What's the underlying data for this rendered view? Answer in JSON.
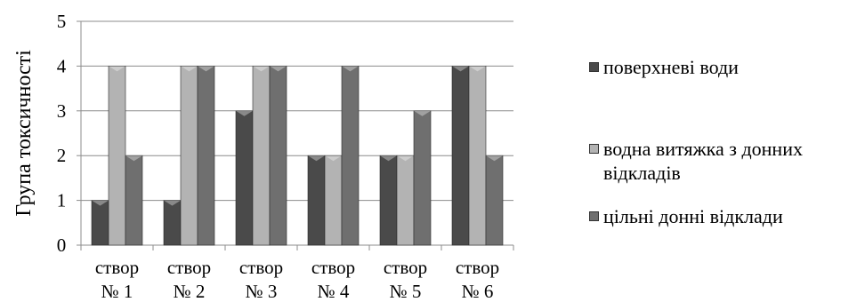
{
  "chart_data": {
    "type": "bar",
    "categories": [
      [
        "створ",
        "№ 1"
      ],
      [
        "створ",
        "№ 2"
      ],
      [
        "створ",
        "№ 3"
      ],
      [
        "створ",
        "№ 4"
      ],
      [
        "створ",
        "№ 5"
      ],
      [
        "створ",
        "№ 6"
      ]
    ],
    "series": [
      {
        "name": "поверхневі води",
        "values": [
          1,
          1,
          3,
          2,
          2,
          4
        ],
        "color": "#4a4a4a"
      },
      {
        "name": "водна витяжка з донних відкладів",
        "values": [
          4,
          4,
          4,
          2,
          2,
          4
        ],
        "color": "#b3b3b3"
      },
      {
        "name": "цільні донні відклади",
        "values": [
          2,
          4,
          4,
          4,
          3,
          2
        ],
        "color": "#6f6f6f"
      }
    ],
    "ylabel": "Група токсичності",
    "xlabel": "",
    "title": "",
    "ylim": [
      0,
      5
    ],
    "yticks": [
      0,
      1,
      2,
      3,
      4,
      5
    ],
    "grid": true,
    "legend_position": "right"
  }
}
